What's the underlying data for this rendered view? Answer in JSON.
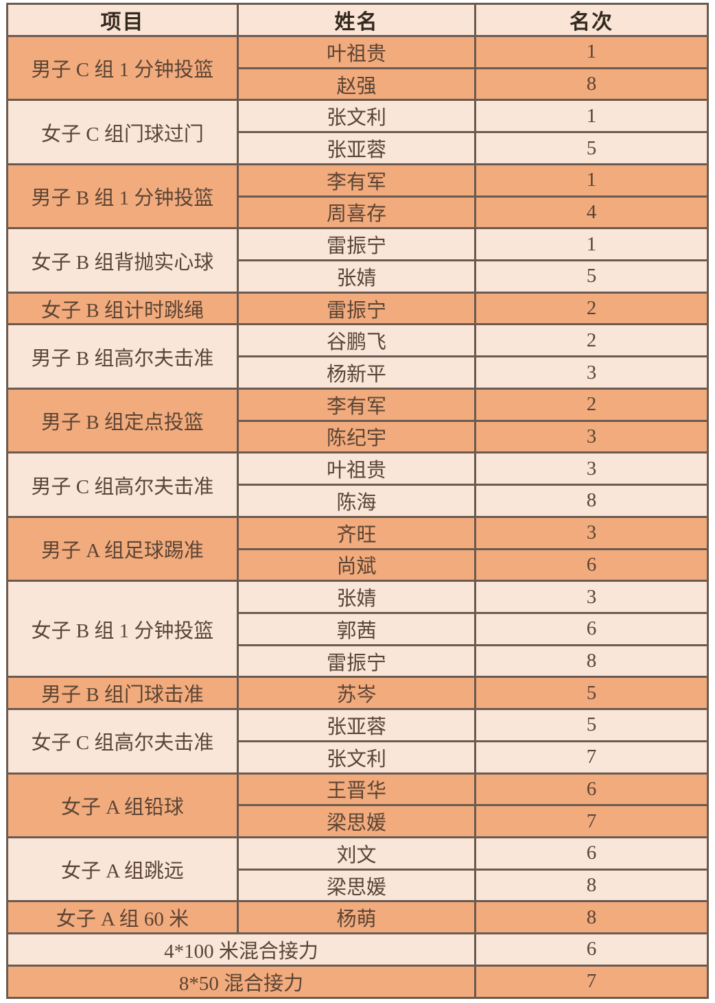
{
  "table": {
    "headers": [
      "项目",
      "姓名",
      "名次"
    ],
    "groups": [
      {
        "event": "男子 C 组 1 分钟投篮",
        "shade": "orange",
        "entries": [
          {
            "name": "叶祖贵",
            "rank": "1"
          },
          {
            "name": "赵强",
            "rank": "8"
          }
        ]
      },
      {
        "event": "女子 C 组门球过门",
        "shade": "light",
        "entries": [
          {
            "name": "张文利",
            "rank": "1"
          },
          {
            "name": "张亚蓉",
            "rank": "5"
          }
        ]
      },
      {
        "event": "男子 B 组 1 分钟投篮",
        "shade": "orange",
        "entries": [
          {
            "name": "李有军",
            "rank": "1"
          },
          {
            "name": "周喜存",
            "rank": "4"
          }
        ]
      },
      {
        "event": "女子 B 组背抛实心球",
        "shade": "light",
        "entries": [
          {
            "name": "雷振宁",
            "rank": "1"
          },
          {
            "name": "张婧",
            "rank": "5"
          }
        ]
      },
      {
        "event": "女子 B 组计时跳绳",
        "shade": "orange",
        "entries": [
          {
            "name": "雷振宁",
            "rank": "2"
          }
        ]
      },
      {
        "event": "男子 B 组高尔夫击准",
        "shade": "light",
        "entries": [
          {
            "name": "谷鹏飞",
            "rank": "2"
          },
          {
            "name": "杨新平",
            "rank": "3"
          }
        ]
      },
      {
        "event": "男子 B 组定点投篮",
        "shade": "orange",
        "entries": [
          {
            "name": "李有军",
            "rank": "2"
          },
          {
            "name": "陈纪宇",
            "rank": "3"
          }
        ]
      },
      {
        "event": "男子 C 组高尔夫击准",
        "shade": "light",
        "entries": [
          {
            "name": "叶祖贵",
            "rank": "3"
          },
          {
            "name": "陈海",
            "rank": "8"
          }
        ]
      },
      {
        "event": "男子 A 组足球踢准",
        "shade": "orange",
        "entries": [
          {
            "name": "齐旺",
            "rank": "3"
          },
          {
            "name": "尚斌",
            "rank": "6"
          }
        ]
      },
      {
        "event": "女子 B 组 1 分钟投篮",
        "shade": "light",
        "entries": [
          {
            "name": "张婧",
            "rank": "3"
          },
          {
            "name": "郭茜",
            "rank": "6"
          },
          {
            "name": "雷振宁",
            "rank": "8"
          }
        ]
      },
      {
        "event": "男子 B 组门球击准",
        "shade": "orange",
        "entries": [
          {
            "name": "苏岑",
            "rank": "5"
          }
        ]
      },
      {
        "event": "女子 C 组高尔夫击准",
        "shade": "light",
        "entries": [
          {
            "name": "张亚蓉",
            "rank": "5"
          },
          {
            "name": "张文利",
            "rank": "7"
          }
        ]
      },
      {
        "event": "女子 A 组铅球",
        "shade": "orange",
        "entries": [
          {
            "name": "王晋华",
            "rank": "6"
          },
          {
            "name": "梁思媛",
            "rank": "7"
          }
        ]
      },
      {
        "event": "女子 A 组跳远",
        "shade": "light",
        "entries": [
          {
            "name": "刘文",
            "rank": "6"
          },
          {
            "name": "梁思媛",
            "rank": "8"
          }
        ]
      },
      {
        "event": "女子 A 组 60 米",
        "shade": "orange",
        "entries": [
          {
            "name": "杨萌",
            "rank": "8"
          }
        ]
      },
      {
        "event": "4*100  米混合接力",
        "shade": "light",
        "merged": true,
        "rank": "6"
      },
      {
        "event": "8*50  混合接力",
        "shade": "orange",
        "merged": true,
        "rank": "7"
      }
    ]
  },
  "colors": {
    "orange_row": "#f2ab7d",
    "light_row": "#f9e6d9",
    "header_row": "#f9e4d6",
    "border": "#6a5a4f",
    "body_text": "#5b4434",
    "header_text": "#33291f"
  }
}
